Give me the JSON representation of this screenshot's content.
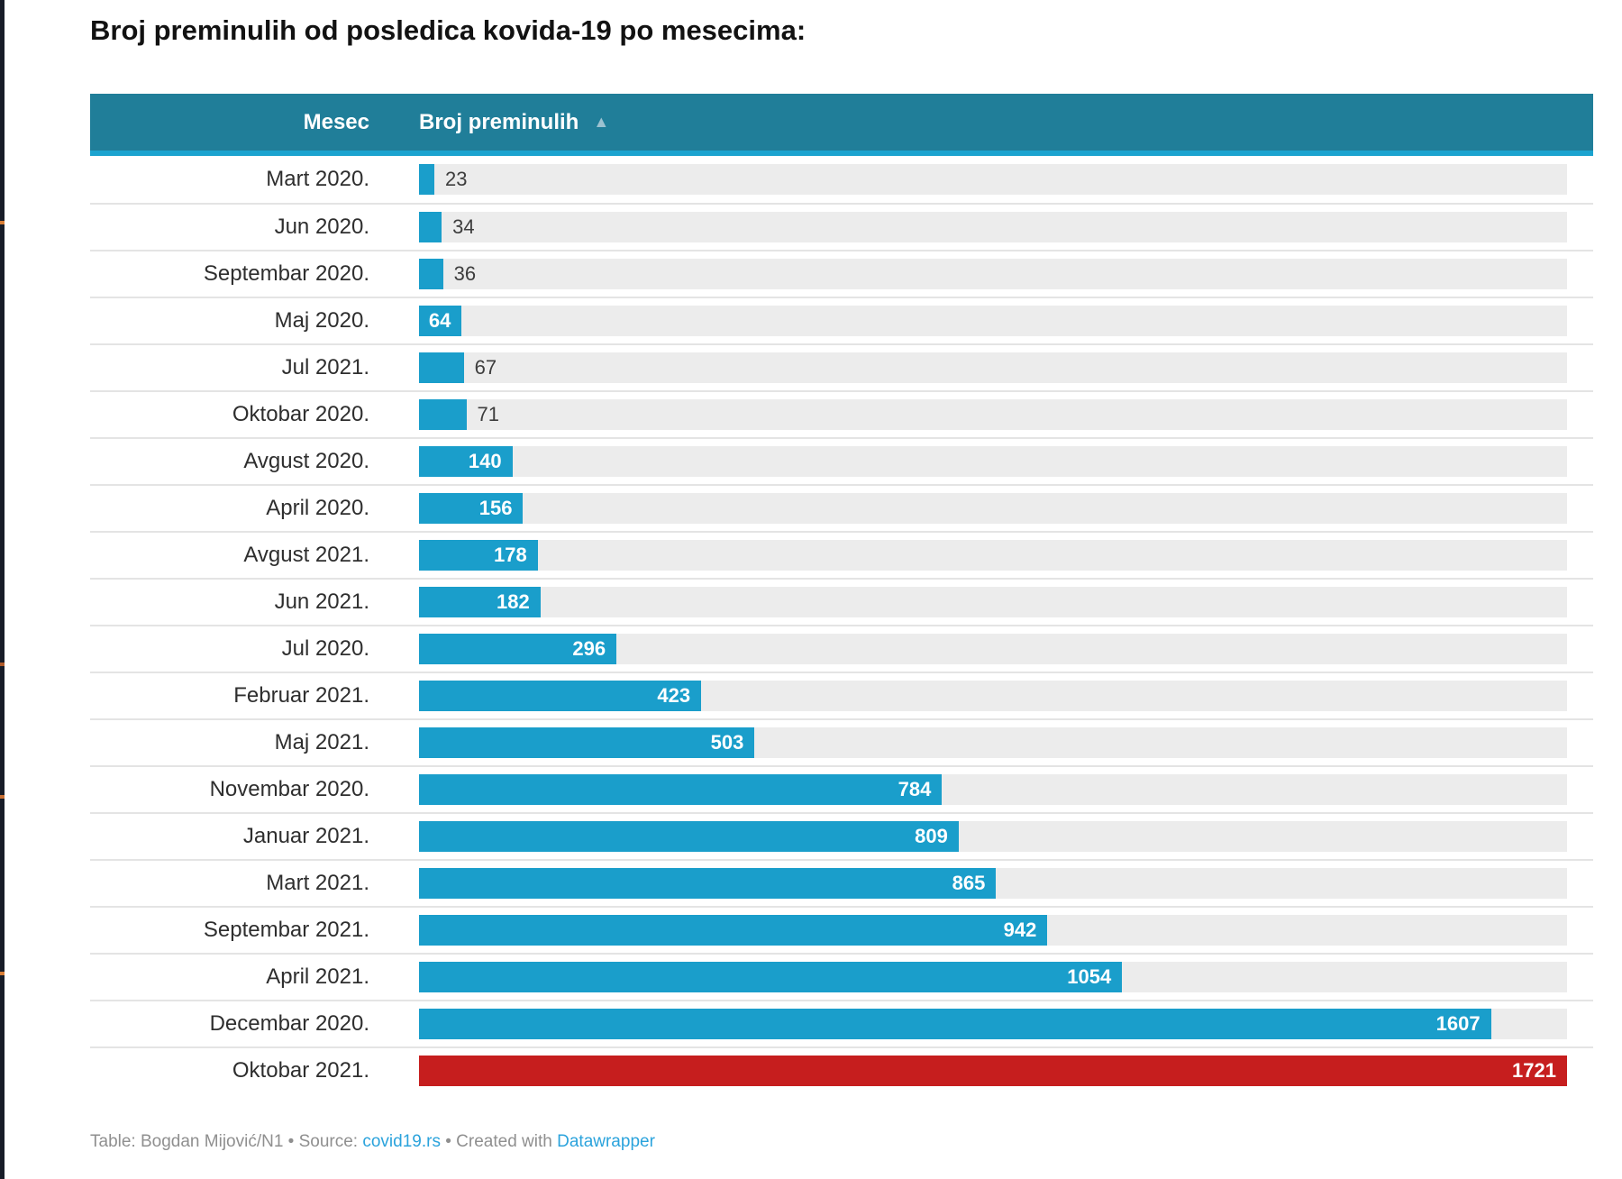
{
  "title": "Broj preminulih od posledica kovida-19 po mesecima:",
  "header": {
    "month_column": "Mesec",
    "value_column": "Broj preminulih",
    "sort_icon": "▲"
  },
  "colors": {
    "header_bg": "#207e99",
    "header_underline": "#1ba3cf",
    "bar": "#1a9ecb",
    "highlight": "#c61e1e",
    "track": "#ececec",
    "link": "#2ba3dc"
  },
  "chart_data": {
    "type": "bar",
    "orientation": "horizontal",
    "title": "Broj preminulih od posledica kovida-19 po mesecima:",
    "categories": [
      "Mart 2020.",
      "Jun 2020.",
      "Septembar 2020.",
      "Maj 2020.",
      "Jul 2021.",
      "Oktobar 2020.",
      "Avgust 2020.",
      "April 2020.",
      "Avgust 2021.",
      "Jun 2021.",
      "Jul 2020.",
      "Februar 2021.",
      "Maj 2021.",
      "Novembar 2020.",
      "Januar 2021.",
      "Mart 2021.",
      "Septembar 2021.",
      "April 2021.",
      "Decembar 2020.",
      "Oktobar 2021."
    ],
    "values": [
      23,
      34,
      36,
      64,
      67,
      71,
      140,
      156,
      178,
      182,
      296,
      423,
      503,
      784,
      809,
      865,
      942,
      1054,
      1607,
      1721
    ],
    "xlim": [
      0,
      1721
    ],
    "sort": "ascending",
    "highlight_category": "Oktobar 2021.",
    "legend": "none",
    "grid": "off"
  },
  "rows": [
    {
      "month": "Mart 2020.",
      "value": 23,
      "label_inside": false,
      "highlight": false
    },
    {
      "month": "Jun 2020.",
      "value": 34,
      "label_inside": false,
      "highlight": false
    },
    {
      "month": "Septembar 2020.",
      "value": 36,
      "label_inside": false,
      "highlight": false
    },
    {
      "month": "Maj 2020.",
      "value": 64,
      "label_inside": true,
      "highlight": false
    },
    {
      "month": "Jul 2021.",
      "value": 67,
      "label_inside": false,
      "highlight": false
    },
    {
      "month": "Oktobar 2020.",
      "value": 71,
      "label_inside": false,
      "highlight": false
    },
    {
      "month": "Avgust 2020.",
      "value": 140,
      "label_inside": true,
      "highlight": false
    },
    {
      "month": "April 2020.",
      "value": 156,
      "label_inside": true,
      "highlight": false
    },
    {
      "month": "Avgust 2021.",
      "value": 178,
      "label_inside": true,
      "highlight": false
    },
    {
      "month": "Jun 2021.",
      "value": 182,
      "label_inside": true,
      "highlight": false
    },
    {
      "month": "Jul 2020.",
      "value": 296,
      "label_inside": true,
      "highlight": false
    },
    {
      "month": "Februar 2021.",
      "value": 423,
      "label_inside": true,
      "highlight": false
    },
    {
      "month": "Maj 2021.",
      "value": 503,
      "label_inside": true,
      "highlight": false
    },
    {
      "month": "Novembar 2020.",
      "value": 784,
      "label_inside": true,
      "highlight": false
    },
    {
      "month": "Januar 2021.",
      "value": 809,
      "label_inside": true,
      "highlight": false
    },
    {
      "month": "Mart 2021.",
      "value": 865,
      "label_inside": true,
      "highlight": false
    },
    {
      "month": "Septembar 2021.",
      "value": 942,
      "label_inside": true,
      "highlight": false
    },
    {
      "month": "April 2021.",
      "value": 1054,
      "label_inside": true,
      "highlight": false
    },
    {
      "month": "Decembar 2020.",
      "value": 1607,
      "label_inside": true,
      "highlight": false
    },
    {
      "month": "Oktobar 2021.",
      "value": 1721,
      "label_inside": true,
      "highlight": true
    }
  ],
  "footer": {
    "text_prefix": "Table: Bogdan Mijović/N1 • Source: ",
    "link_source": "covid19.rs",
    "text_mid": " • Created with ",
    "link_tool": "Datawrapper"
  }
}
